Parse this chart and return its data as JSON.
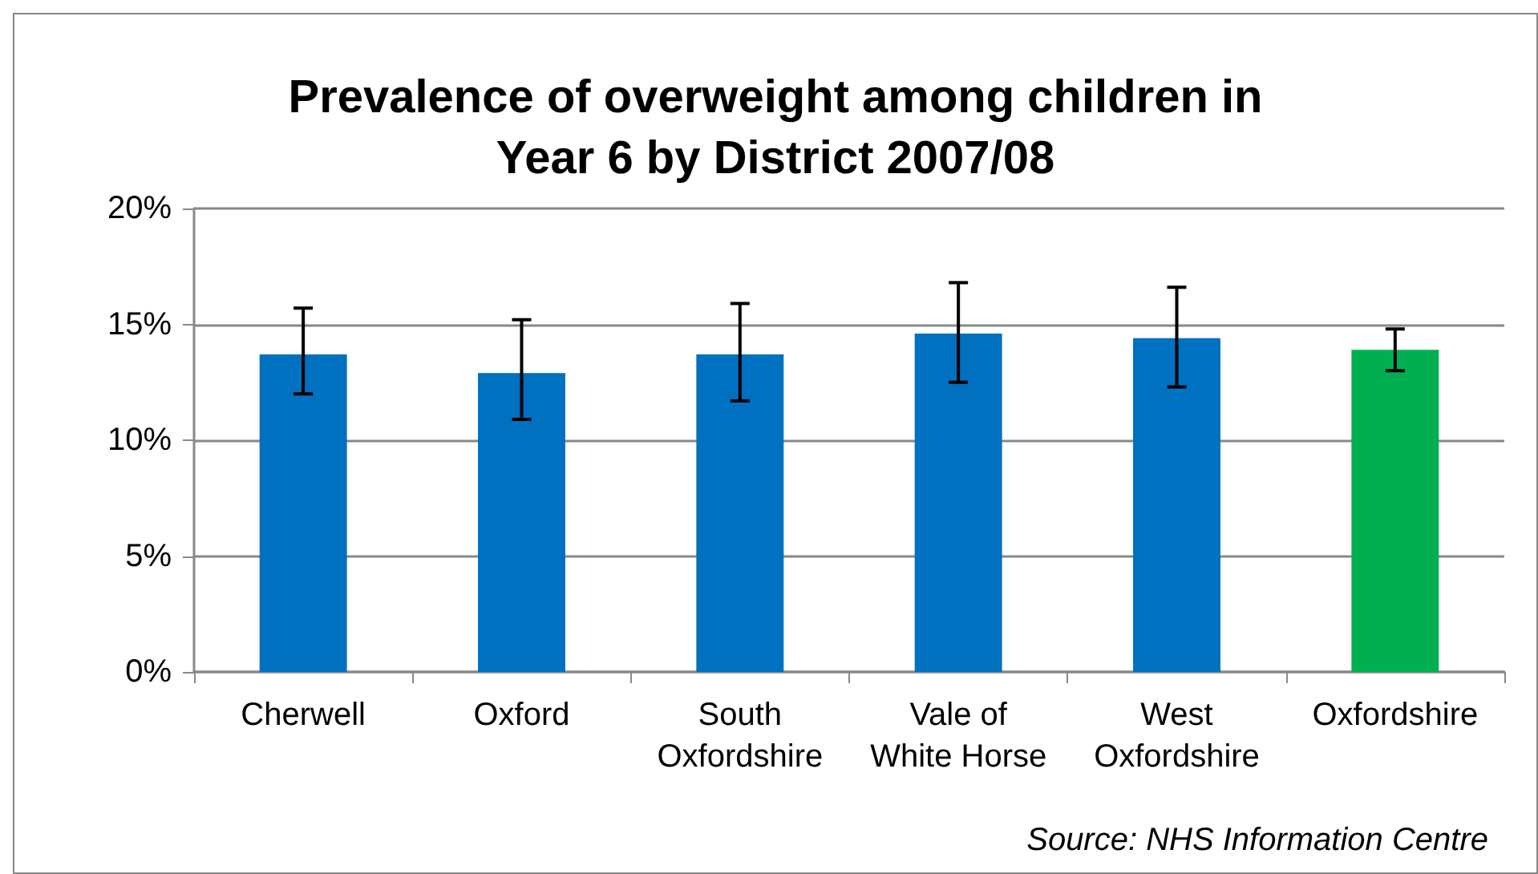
{
  "chart_data": {
    "type": "bar",
    "title": "Prevalence of overweight among children in\nYear 6 by District 2007/08",
    "categories": [
      "Cherwell",
      "Oxford",
      "South\nOxfordshire",
      "Vale of\nWhite Horse",
      "West\nOxfordshire",
      "Oxfordshire"
    ],
    "values": [
      13.7,
      12.9,
      13.7,
      14.6,
      14.4,
      13.9
    ],
    "colors": [
      "#0070c0",
      "#0070c0",
      "#0070c0",
      "#0070c0",
      "#0070c0",
      "#00b050"
    ],
    "errors": [
      [
        12.0,
        15.7
      ],
      [
        10.9,
        15.2
      ],
      [
        11.7,
        15.9
      ],
      [
        12.5,
        16.8
      ],
      [
        12.3,
        16.6
      ],
      [
        13.0,
        14.8
      ]
    ],
    "ylim": [
      0,
      20
    ],
    "yticks": [
      {
        "value": 0,
        "label": "0%"
      },
      {
        "value": 5,
        "label": "5%"
      },
      {
        "value": 10,
        "label": "10%"
      },
      {
        "value": 15,
        "label": "15%"
      },
      {
        "value": 20,
        "label": "20%"
      }
    ],
    "grid": "y",
    "annotations": [
      "Source: NHS Information Centre"
    ]
  }
}
